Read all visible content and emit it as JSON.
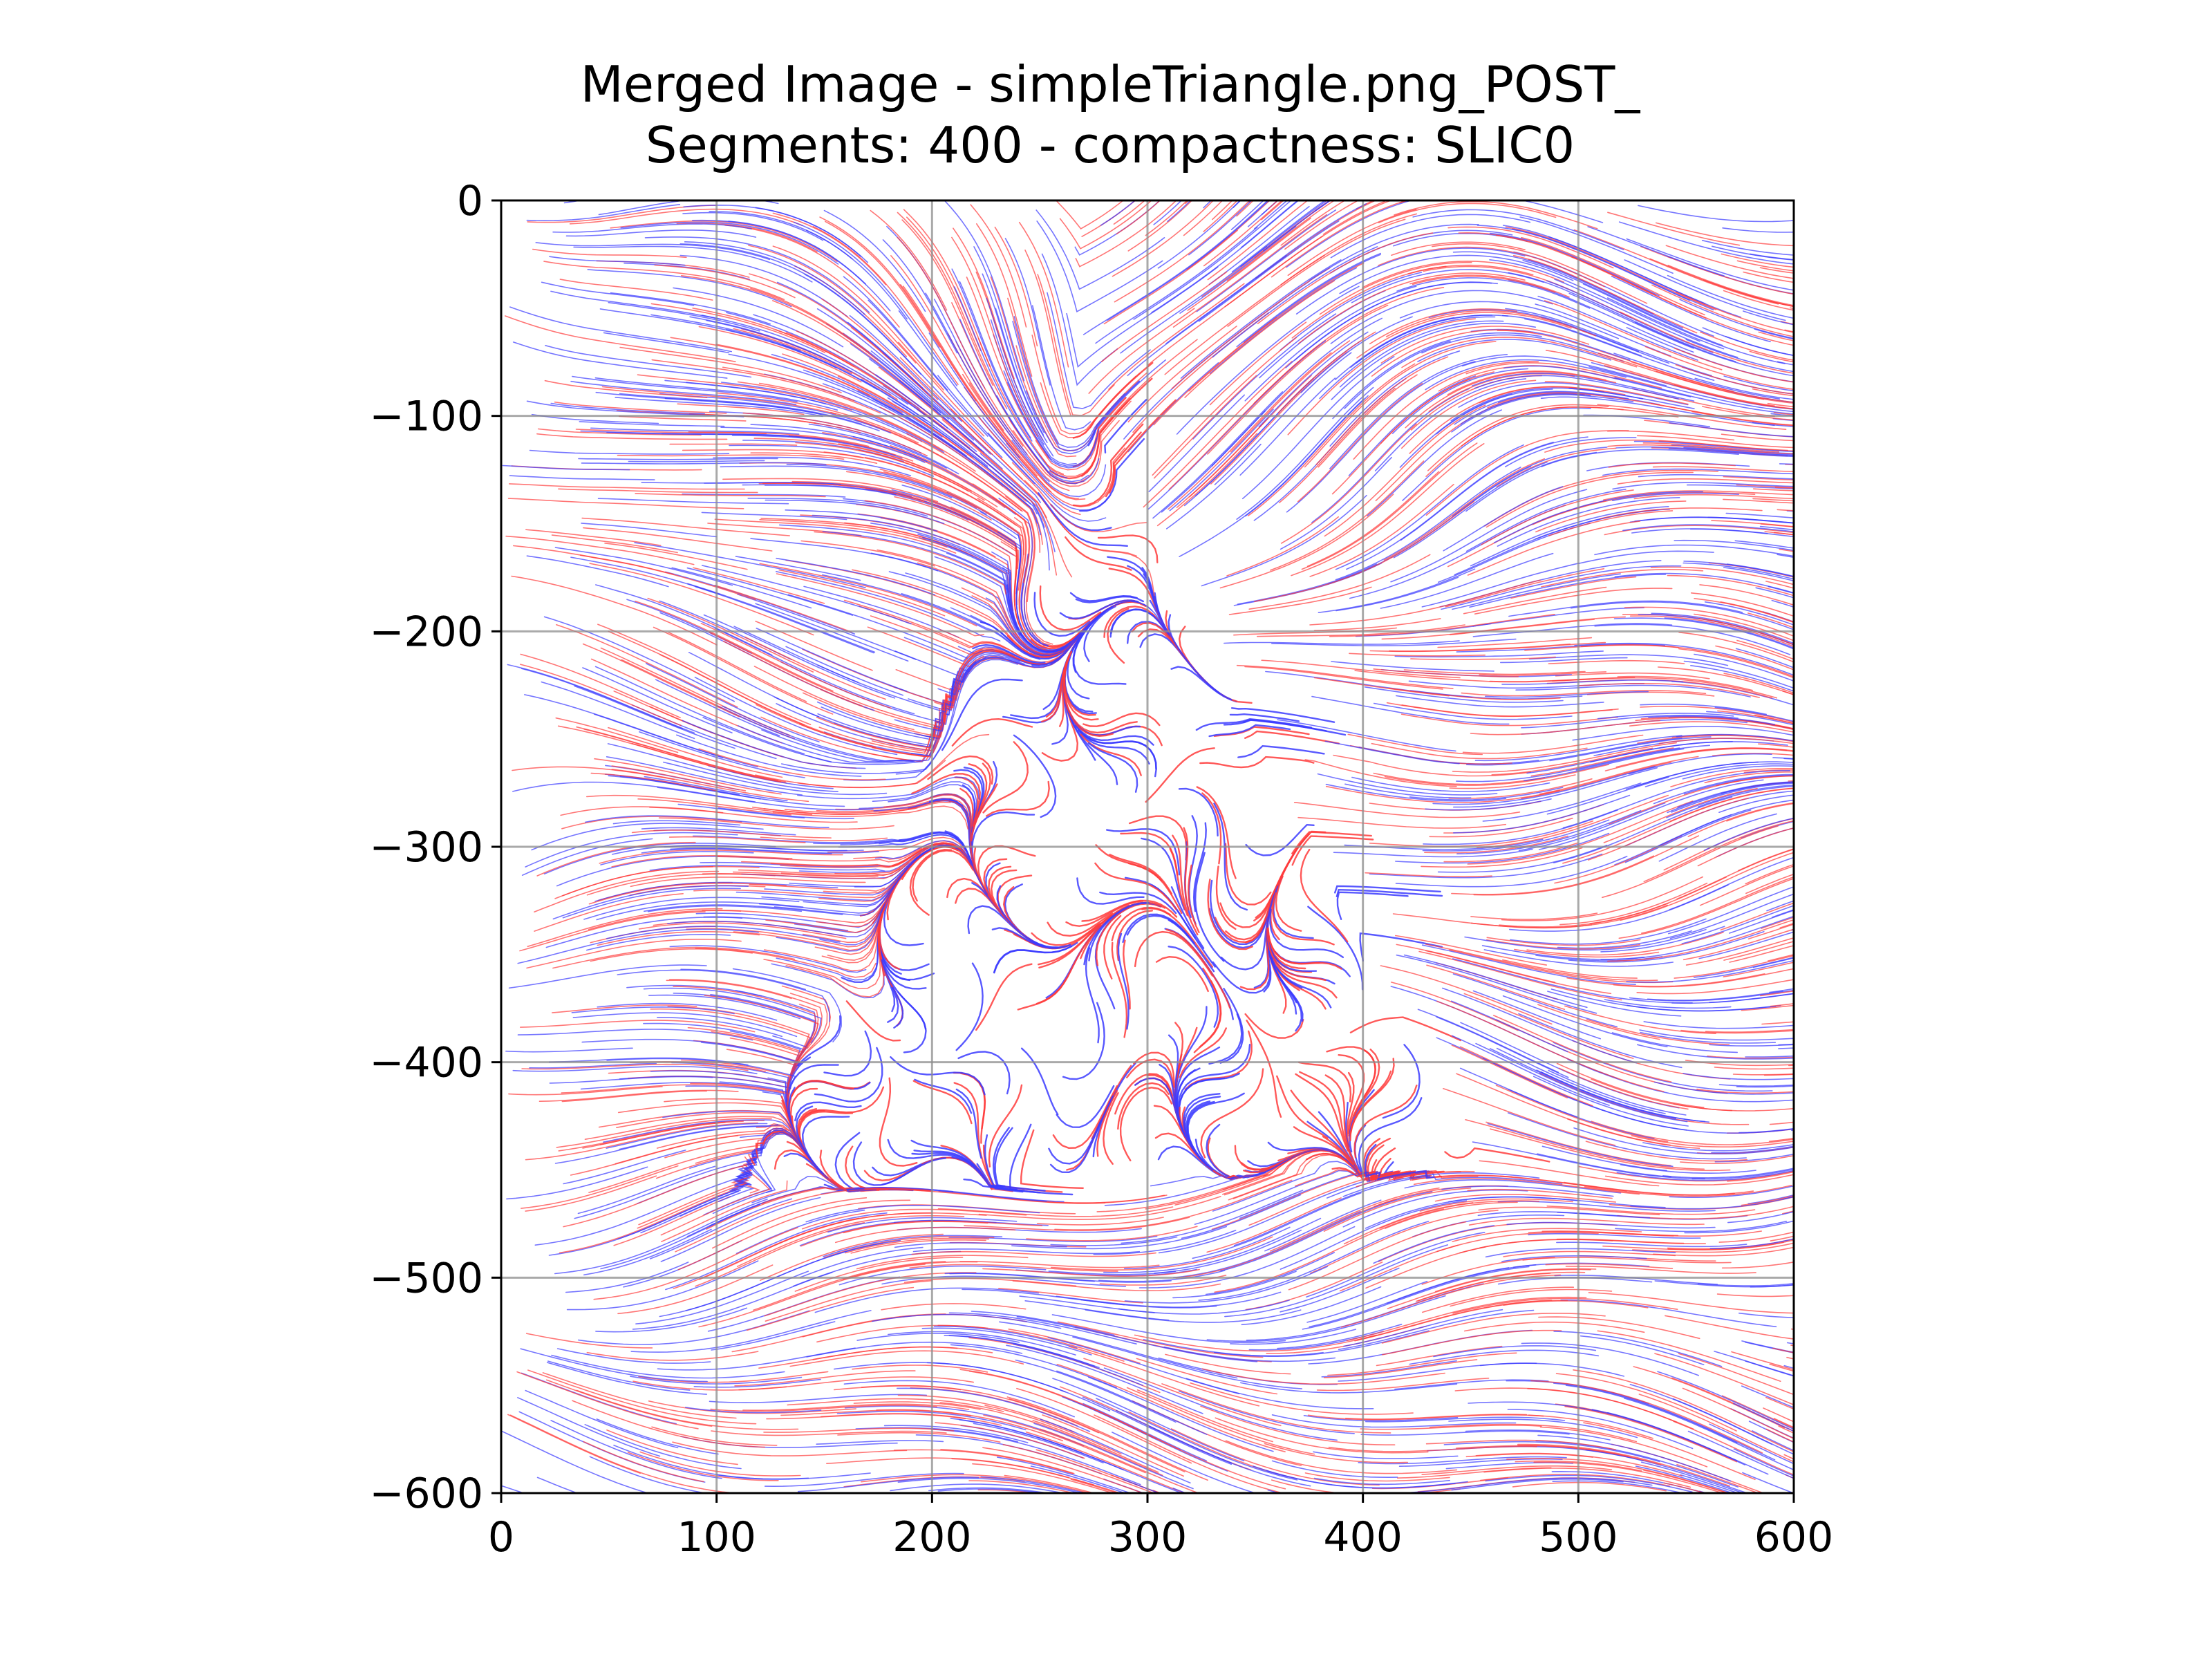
{
  "chart_data": {
    "type": "streamline",
    "title_line1": "Merged Image - simpleTriangle.png_POST_",
    "title_line2": "Segments: 400 - compactness: SLIC0",
    "xlabel": "",
    "ylabel": "",
    "xlim": [
      0,
      600
    ],
    "ylim": [
      -600,
      0
    ],
    "x_ticks": [
      0,
      100,
      200,
      300,
      400,
      500,
      600
    ],
    "y_ticks": [
      0,
      -100,
      -200,
      -300,
      -400,
      -500,
      -600
    ],
    "x_tick_labels": [
      "0",
      "100",
      "200",
      "300",
      "400",
      "500",
      "600"
    ],
    "y_tick_labels": [
      "0",
      "−100",
      "−200",
      "−300",
      "−400",
      "−500",
      "−600"
    ],
    "grid": true,
    "series": [
      {
        "color": "#ff3b3b"
      },
      {
        "color": "#3b3bff"
      }
    ],
    "triangle_region": {
      "apex": [
        267,
        -90
      ],
      "base_left": [
        110,
        -460
      ],
      "base_right": [
        455,
        -450
      ]
    }
  }
}
